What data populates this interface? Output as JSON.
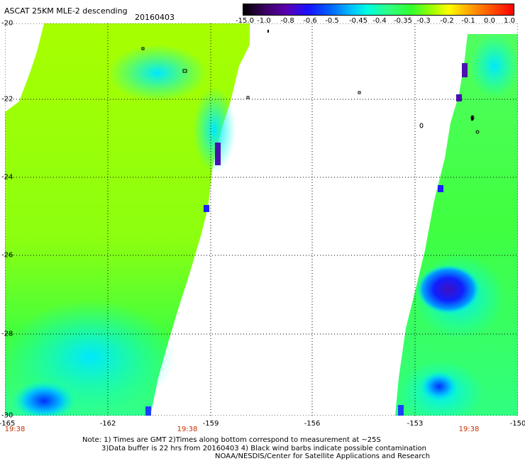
{
  "title": "ASCAT 25KM MLE-2 descending",
  "date": "20160403",
  "colorbar": {
    "ticks": [
      "-15.0",
      "-1.0",
      "-0.8",
      "-0.6",
      "-0.5",
      "-0.45",
      "-0.4",
      "-0.35",
      "-0.3",
      "-0.2",
      "-0.1",
      "0.0",
      "1.0"
    ]
  },
  "axes": {
    "x_ticks": [
      "-165",
      "-162",
      "-159",
      "-156",
      "-153",
      "-150"
    ],
    "y_ticks": [
      "-20",
      "-22",
      "-24",
      "-26",
      "-28",
      "-30"
    ],
    "x_range": [
      -165,
      -150
    ],
    "y_range": [
      -30,
      -20
    ]
  },
  "time_labels": [
    "19:38",
    "19:38",
    "19:38"
  ],
  "notes": [
    "Note: 1) Times are GMT 2)Times along bottom correspond to measurement at ~25S",
    "3)Data buffer is 22 hrs from 20160403 4) Black wind barbs indicate possible contamination",
    "NOAA/NESDIS/Center for Satellite Applications and Research"
  ],
  "colors": {
    "swath_green": "#7cff20",
    "swath_light": "#a0ff00",
    "cyan": "#00ffe0",
    "blue": "#0040ff",
    "purple": "#4a10b0",
    "time_label": "#c03000"
  }
}
